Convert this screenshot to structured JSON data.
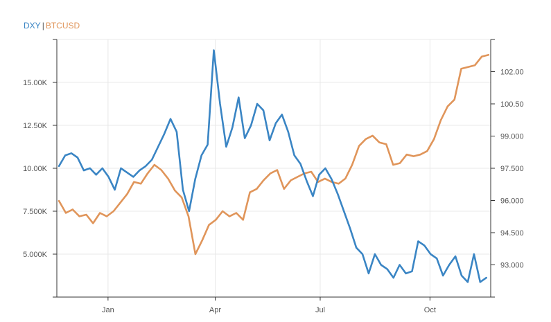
{
  "legend": {
    "series1": "DXY",
    "separator": "|",
    "series2": "BTCUSD"
  },
  "colors": {
    "dxy": "#3a85c4",
    "btc": "#e0955a",
    "grid": "#e8e8e8",
    "axis": "#333333"
  },
  "chart_data": {
    "type": "line",
    "title": "",
    "xlabel": "",
    "grid": true,
    "legend_position": "top-left",
    "x_ticks": [
      "Jan",
      "Apr",
      "Jul",
      "Oct"
    ],
    "y_left": {
      "series": "BTCUSD",
      "ylim": [
        2500,
        17500
      ],
      "ticks": [
        "5.000K",
        "7.500K",
        "10.00K",
        "12.50K",
        "15.00K"
      ],
      "tick_values": [
        5000,
        7500,
        10000,
        12500,
        15000
      ]
    },
    "y_right": {
      "series": "DXY",
      "ylim": [
        91.5,
        103.5
      ],
      "ticks": [
        "93.000",
        "94.500",
        "96.000",
        "97.500",
        "99.000",
        "100.50",
        "102.00"
      ],
      "tick_values": [
        93.0,
        94.5,
        96.0,
        97.5,
        99.0,
        100.5,
        102.0
      ]
    },
    "series": [
      {
        "name": "DXY",
        "axis": "right",
        "values": [
          97.6,
          98.1,
          98.2,
          98.0,
          97.4,
          97.5,
          97.2,
          97.5,
          97.1,
          96.5,
          97.5,
          97.3,
          97.1,
          97.4,
          97.6,
          97.9,
          98.5,
          99.1,
          99.8,
          99.2,
          96.5,
          95.5,
          97.0,
          98.1,
          98.6,
          103.0,
          100.5,
          98.5,
          99.4,
          100.8,
          98.9,
          99.5,
          100.5,
          100.2,
          98.8,
          99.6,
          100.0,
          99.2,
          98.1,
          97.7,
          96.9,
          96.2,
          97.2,
          97.5,
          97.0,
          96.3,
          95.5,
          94.7,
          93.8,
          93.5,
          92.6,
          93.5,
          93.0,
          92.8,
          92.4,
          93.0,
          92.6,
          92.7,
          94.1,
          93.9,
          93.5,
          93.3,
          92.5,
          93.0,
          93.4,
          92.5,
          92.2,
          93.5,
          92.2,
          92.4
        ]
      },
      {
        "name": "BTCUSD",
        "axis": "left",
        "values": [
          8100,
          7400,
          7600,
          7200,
          7300,
          6800,
          7400,
          7200,
          7500,
          8000,
          8500,
          9200,
          9100,
          9700,
          10200,
          9900,
          9400,
          8700,
          8300,
          7200,
          5000,
          5800,
          6700,
          7000,
          7500,
          7200,
          7400,
          7000,
          8600,
          8800,
          9300,
          9700,
          9900,
          8800,
          9300,
          9500,
          9700,
          9800,
          9200,
          9400,
          9200,
          9100,
          9400,
          10200,
          11300,
          11700,
          11900,
          11500,
          11400,
          10200,
          10300,
          10800,
          10700,
          10800,
          11000,
          11700,
          12800,
          13600,
          14000,
          15800,
          15900,
          16000,
          16500,
          16600
        ]
      }
    ]
  }
}
